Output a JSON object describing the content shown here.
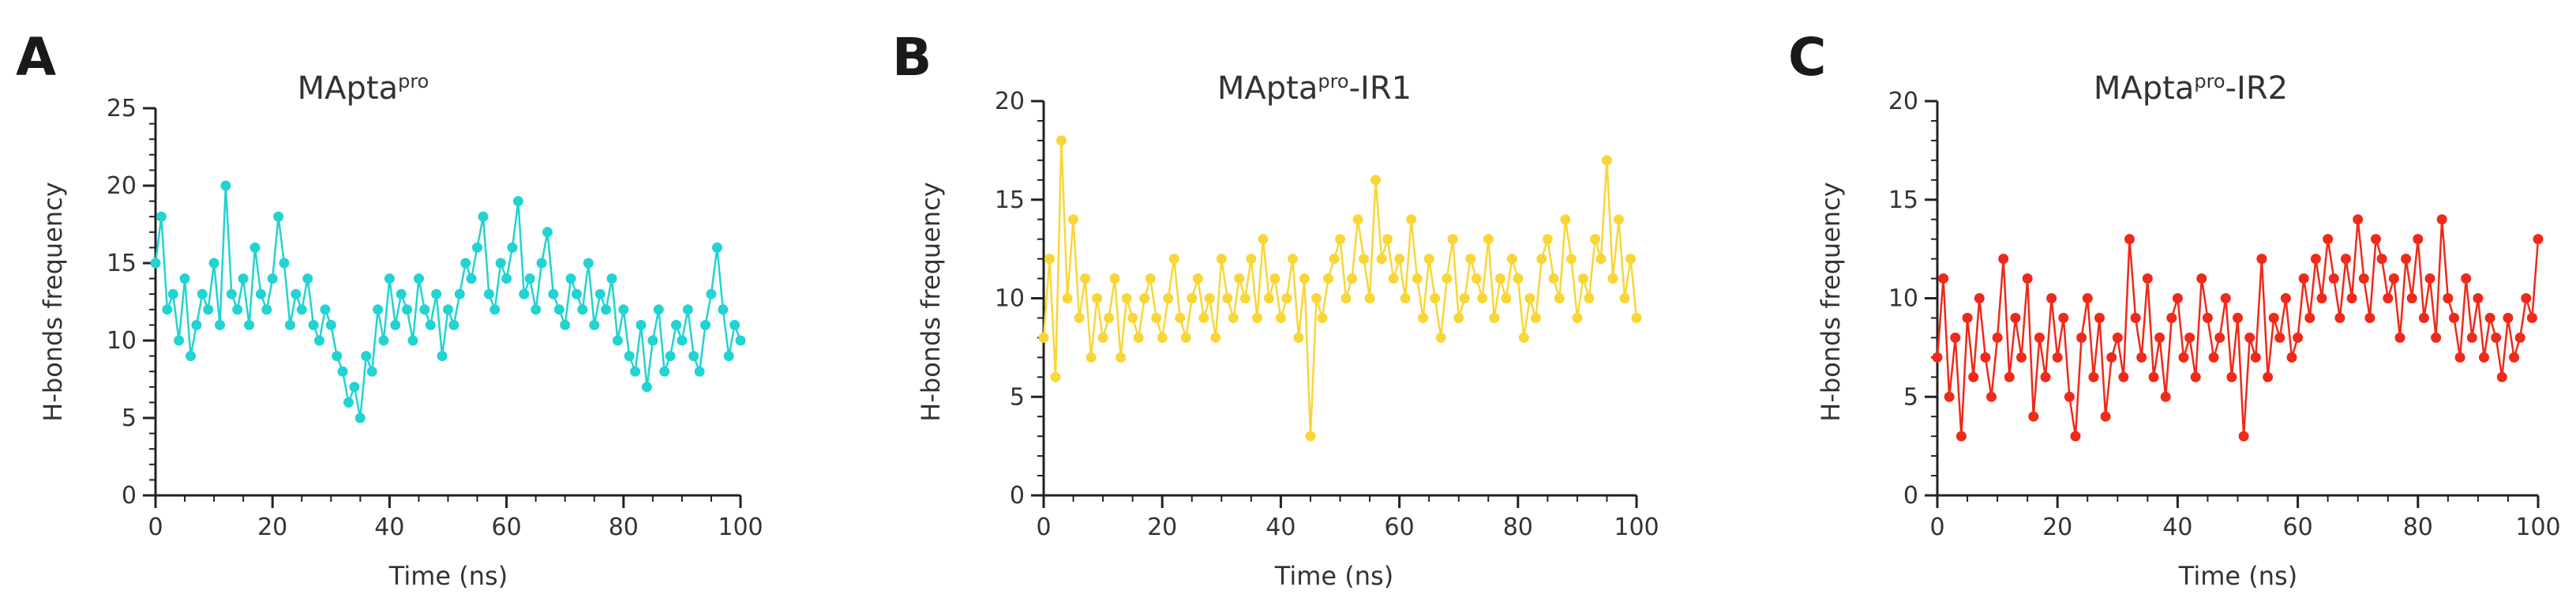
{
  "chart_data": [
    {
      "type": "line",
      "panel": "A",
      "title_main": "MApta",
      "title_sup": "pro",
      "title_suffix": "",
      "xlabel": "Time (ns)",
      "ylabel": "H-bonds frequency",
      "xlim": [
        0,
        100
      ],
      "ylim": [
        0,
        25
      ],
      "xticks": [
        0,
        20,
        40,
        60,
        80,
        100
      ],
      "yticks": [
        0,
        5,
        10,
        15,
        20,
        25
      ],
      "color": "#22d3d3",
      "markers": true,
      "series": [
        {
          "x": [
            0,
            1,
            2,
            3,
            4,
            5,
            6,
            7,
            8,
            9,
            10,
            11,
            12,
            13,
            14,
            15,
            16,
            17,
            18,
            19,
            20,
            21,
            22,
            23,
            24,
            25,
            26,
            27,
            28,
            29,
            30,
            31,
            32,
            33,
            34,
            35,
            36,
            37,
            38,
            39,
            40,
            41,
            42,
            43,
            44,
            45,
            46,
            47,
            48,
            49,
            50,
            51,
            52,
            53,
            54,
            55,
            56,
            57,
            58,
            59,
            60,
            61,
            62,
            63,
            64,
            65,
            66,
            67,
            68,
            69,
            70,
            71,
            72,
            73,
            74,
            75,
            76,
            77,
            78,
            79,
            80,
            81,
            82,
            83,
            84,
            85,
            86,
            87,
            88,
            89,
            90,
            91,
            92,
            93,
            94,
            95,
            96,
            97,
            98,
            99,
            100
          ],
          "y": [
            15,
            18,
            12,
            13,
            10,
            14,
            9,
            11,
            13,
            12,
            15,
            11,
            20,
            13,
            12,
            14,
            11,
            16,
            13,
            12,
            14,
            18,
            15,
            11,
            13,
            12,
            14,
            11,
            10,
            12,
            11,
            9,
            8,
            6,
            7,
            5,
            9,
            8,
            12,
            10,
            14,
            11,
            13,
            12,
            10,
            14,
            12,
            11,
            13,
            9,
            12,
            11,
            13,
            15,
            14,
            16,
            18,
            13,
            12,
            15,
            14,
            16,
            19,
            13,
            14,
            12,
            15,
            17,
            13,
            12,
            11,
            14,
            13,
            12,
            15,
            11,
            13,
            12,
            14,
            10,
            12,
            9,
            8,
            11,
            7,
            10,
            12,
            8,
            9,
            11,
            10,
            12,
            9,
            8,
            11,
            13,
            16,
            12,
            9,
            11,
            10
          ]
        }
      ]
    },
    {
      "type": "line",
      "panel": "B",
      "title_main": "MApta",
      "title_sup": "pro",
      "title_suffix": "-IR1",
      "xlabel": "Time (ns)",
      "ylabel": "H-bonds frequency",
      "xlim": [
        0,
        100
      ],
      "ylim": [
        0,
        20
      ],
      "xticks": [
        0,
        20,
        40,
        60,
        80,
        100
      ],
      "yticks": [
        0,
        5,
        10,
        15,
        20
      ],
      "color": "#f9d638",
      "markers": true,
      "series": [
        {
          "x": [
            0,
            1,
            2,
            3,
            4,
            5,
            6,
            7,
            8,
            9,
            10,
            11,
            12,
            13,
            14,
            15,
            16,
            17,
            18,
            19,
            20,
            21,
            22,
            23,
            24,
            25,
            26,
            27,
            28,
            29,
            30,
            31,
            32,
            33,
            34,
            35,
            36,
            37,
            38,
            39,
            40,
            41,
            42,
            43,
            44,
            45,
            46,
            47,
            48,
            49,
            50,
            51,
            52,
            53,
            54,
            55,
            56,
            57,
            58,
            59,
            60,
            61,
            62,
            63,
            64,
            65,
            66,
            67,
            68,
            69,
            70,
            71,
            72,
            73,
            74,
            75,
            76,
            77,
            78,
            79,
            80,
            81,
            82,
            83,
            84,
            85,
            86,
            87,
            88,
            89,
            90,
            91,
            92,
            93,
            94,
            95,
            96,
            97,
            98,
            99,
            100
          ],
          "y": [
            8,
            12,
            6,
            18,
            10,
            14,
            9,
            11,
            7,
            10,
            8,
            9,
            11,
            7,
            10,
            9,
            8,
            10,
            11,
            9,
            8,
            10,
            12,
            9,
            8,
            10,
            11,
            9,
            10,
            8,
            12,
            10,
            9,
            11,
            10,
            12,
            9,
            13,
            10,
            11,
            9,
            10,
            12,
            8,
            11,
            3,
            10,
            9,
            11,
            12,
            13,
            10,
            11,
            14,
            12,
            10,
            16,
            12,
            13,
            11,
            12,
            10,
            14,
            11,
            9,
            12,
            10,
            8,
            11,
            13,
            9,
            10,
            12,
            11,
            10,
            13,
            9,
            11,
            10,
            12,
            11,
            8,
            10,
            9,
            12,
            13,
            11,
            10,
            14,
            12,
            9,
            11,
            10,
            13,
            12,
            17,
            11,
            14,
            10,
            12,
            9
          ]
        }
      ]
    },
    {
      "type": "line",
      "panel": "C",
      "title_main": "MApta",
      "title_sup": "pro",
      "title_suffix": "-IR2",
      "xlabel": "Time (ns)",
      "ylabel": "H-bonds frequency",
      "xlim": [
        0,
        100
      ],
      "ylim": [
        0,
        20
      ],
      "xticks": [
        0,
        20,
        40,
        60,
        80,
        100
      ],
      "yticks": [
        0,
        5,
        10,
        15,
        20
      ],
      "color": "#ee2a1a",
      "markers": true,
      "series": [
        {
          "x": [
            0,
            1,
            2,
            3,
            4,
            5,
            6,
            7,
            8,
            9,
            10,
            11,
            12,
            13,
            14,
            15,
            16,
            17,
            18,
            19,
            20,
            21,
            22,
            23,
            24,
            25,
            26,
            27,
            28,
            29,
            30,
            31,
            32,
            33,
            34,
            35,
            36,
            37,
            38,
            39,
            40,
            41,
            42,
            43,
            44,
            45,
            46,
            47,
            48,
            49,
            50,
            51,
            52,
            53,
            54,
            55,
            56,
            57,
            58,
            59,
            60,
            61,
            62,
            63,
            64,
            65,
            66,
            67,
            68,
            69,
            70,
            71,
            72,
            73,
            74,
            75,
            76,
            77,
            78,
            79,
            80,
            81,
            82,
            83,
            84,
            85,
            86,
            87,
            88,
            89,
            90,
            91,
            92,
            93,
            94,
            95,
            96,
            97,
            98,
            99,
            100
          ],
          "y": [
            7,
            11,
            5,
            8,
            3,
            9,
            6,
            10,
            7,
            5,
            8,
            12,
            6,
            9,
            7,
            11,
            4,
            8,
            6,
            10,
            7,
            9,
            5,
            3,
            8,
            10,
            6,
            9,
            4,
            7,
            8,
            6,
            13,
            9,
            7,
            11,
            6,
            8,
            5,
            9,
            10,
            7,
            8,
            6,
            11,
            9,
            7,
            8,
            10,
            6,
            9,
            3,
            8,
            7,
            12,
            6,
            9,
            8,
            10,
            7,
            8,
            11,
            9,
            12,
            10,
            13,
            11,
            9,
            12,
            10,
            14,
            11,
            9,
            13,
            12,
            10,
            11,
            8,
            12,
            10,
            13,
            9,
            11,
            8,
            14,
            10,
            9,
            7,
            11,
            8,
            10,
            7,
            9,
            8,
            6,
            9,
            7,
            8,
            10,
            9,
            13
          ]
        }
      ]
    }
  ]
}
